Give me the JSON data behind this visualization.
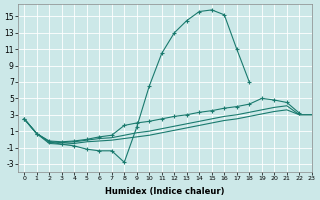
{
  "xlabel": "Humidex (Indice chaleur)",
  "background_color": "#cce8e8",
  "grid_color": "#b8d8d8",
  "line_color": "#1a7a6e",
  "xlim": [
    -0.5,
    23
  ],
  "ylim": [
    -4,
    16.5
  ],
  "yticks": [
    -3,
    -1,
    1,
    3,
    5,
    7,
    9,
    11,
    13,
    15
  ],
  "xticks": [
    0,
    1,
    2,
    3,
    4,
    5,
    6,
    7,
    8,
    9,
    10,
    11,
    12,
    13,
    14,
    15,
    16,
    17,
    18,
    19,
    20,
    21,
    22,
    23
  ],
  "line1_x": [
    0,
    1,
    2,
    3,
    4,
    5,
    6,
    7,
    8,
    9,
    10,
    11,
    12,
    13,
    14,
    15,
    16,
    17,
    18
  ],
  "line1_y": [
    2.5,
    0.7,
    -0.3,
    -0.6,
    -0.8,
    -1.2,
    -1.4,
    -1.4,
    -2.8,
    1.5,
    6.5,
    10.5,
    13.0,
    14.5,
    15.6,
    15.8,
    15.2,
    11.0,
    7.0
  ],
  "line2_x": [
    0,
    1,
    2,
    3,
    4,
    5,
    6,
    7,
    8,
    9,
    10,
    11,
    12,
    13,
    14,
    15,
    16,
    17,
    18,
    19,
    20,
    21,
    22
  ],
  "line2_y": [
    2.5,
    0.7,
    -0.2,
    -0.3,
    -0.2,
    0.0,
    0.3,
    0.5,
    1.7,
    2.0,
    2.2,
    2.5,
    2.8,
    3.0,
    3.3,
    3.5,
    3.8,
    4.0,
    4.3,
    5.0,
    4.8,
    4.5,
    3.2
  ],
  "line3_x": [
    0,
    1,
    2,
    3,
    4,
    5,
    6,
    7,
    8,
    9,
    10,
    11,
    12,
    13,
    14,
    15,
    16,
    17,
    18,
    19,
    20,
    21,
    22,
    23
  ],
  "line3_y": [
    2.5,
    0.7,
    -0.3,
    -0.4,
    -0.3,
    -0.1,
    0.1,
    0.2,
    0.5,
    0.8,
    1.0,
    1.3,
    1.6,
    1.9,
    2.2,
    2.5,
    2.8,
    3.0,
    3.3,
    3.6,
    3.9,
    4.1,
    3.0,
    3.0
  ],
  "line4_x": [
    0,
    1,
    2,
    3,
    4,
    5,
    6,
    7,
    8,
    9,
    10,
    11,
    12,
    13,
    14,
    15,
    16,
    17,
    18,
    19,
    20,
    21,
    22,
    23
  ],
  "line4_y": [
    2.5,
    0.7,
    -0.5,
    -0.6,
    -0.5,
    -0.3,
    -0.2,
    -0.1,
    0.1,
    0.3,
    0.5,
    0.8,
    1.1,
    1.4,
    1.7,
    2.0,
    2.3,
    2.5,
    2.8,
    3.1,
    3.4,
    3.6,
    3.0,
    3.0
  ]
}
